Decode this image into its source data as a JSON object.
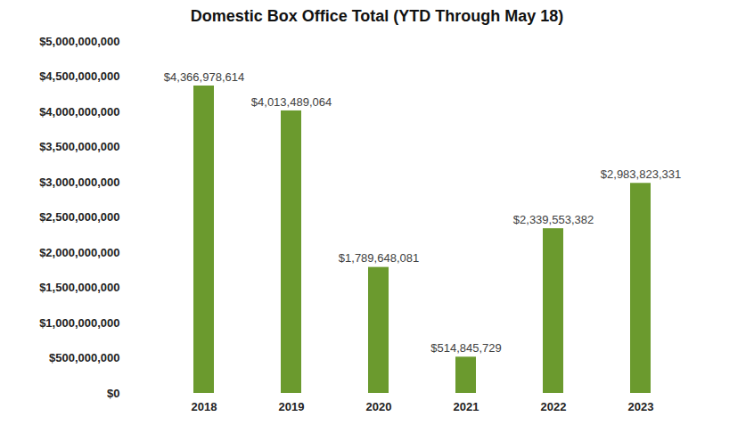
{
  "chart_data": {
    "type": "bar",
    "title": "Domestic Box Office Total (YTD Through May 18)",
    "categories": [
      "2018",
      "2019",
      "2020",
      "2021",
      "2022",
      "2023"
    ],
    "values": [
      4366978614,
      4013489064,
      1789648081,
      514845729,
      2339553382,
      2983823331
    ],
    "value_labels": [
      "$4,366,978,614",
      "$4,013,489,064",
      "$1,789,648,081",
      "$514,845,729",
      "$2,339,553,382",
      "$2,983,823,331"
    ],
    "color": "#6b9a2e",
    "ylim": [
      0,
      5000000000
    ],
    "yticks": [
      {
        "value": 0,
        "label": "$0"
      },
      {
        "value": 500000000,
        "label": "$500,000,000"
      },
      {
        "value": 1000000000,
        "label": "$1,000,000,000"
      },
      {
        "value": 1500000000,
        "label": "$1,500,000,000"
      },
      {
        "value": 2000000000,
        "label": "$2,000,000,000"
      },
      {
        "value": 2500000000,
        "label": "$2,500,000,000"
      },
      {
        "value": 3000000000,
        "label": "$3,000,000,000"
      },
      {
        "value": 3500000000,
        "label": "$3,500,000,000"
      },
      {
        "value": 4000000000,
        "label": "$4,000,000,000"
      },
      {
        "value": 4500000000,
        "label": "$4,500,000,000"
      },
      {
        "value": 5000000000,
        "label": "$5,000,000,000"
      }
    ],
    "grid": false,
    "data_labels": true
  }
}
